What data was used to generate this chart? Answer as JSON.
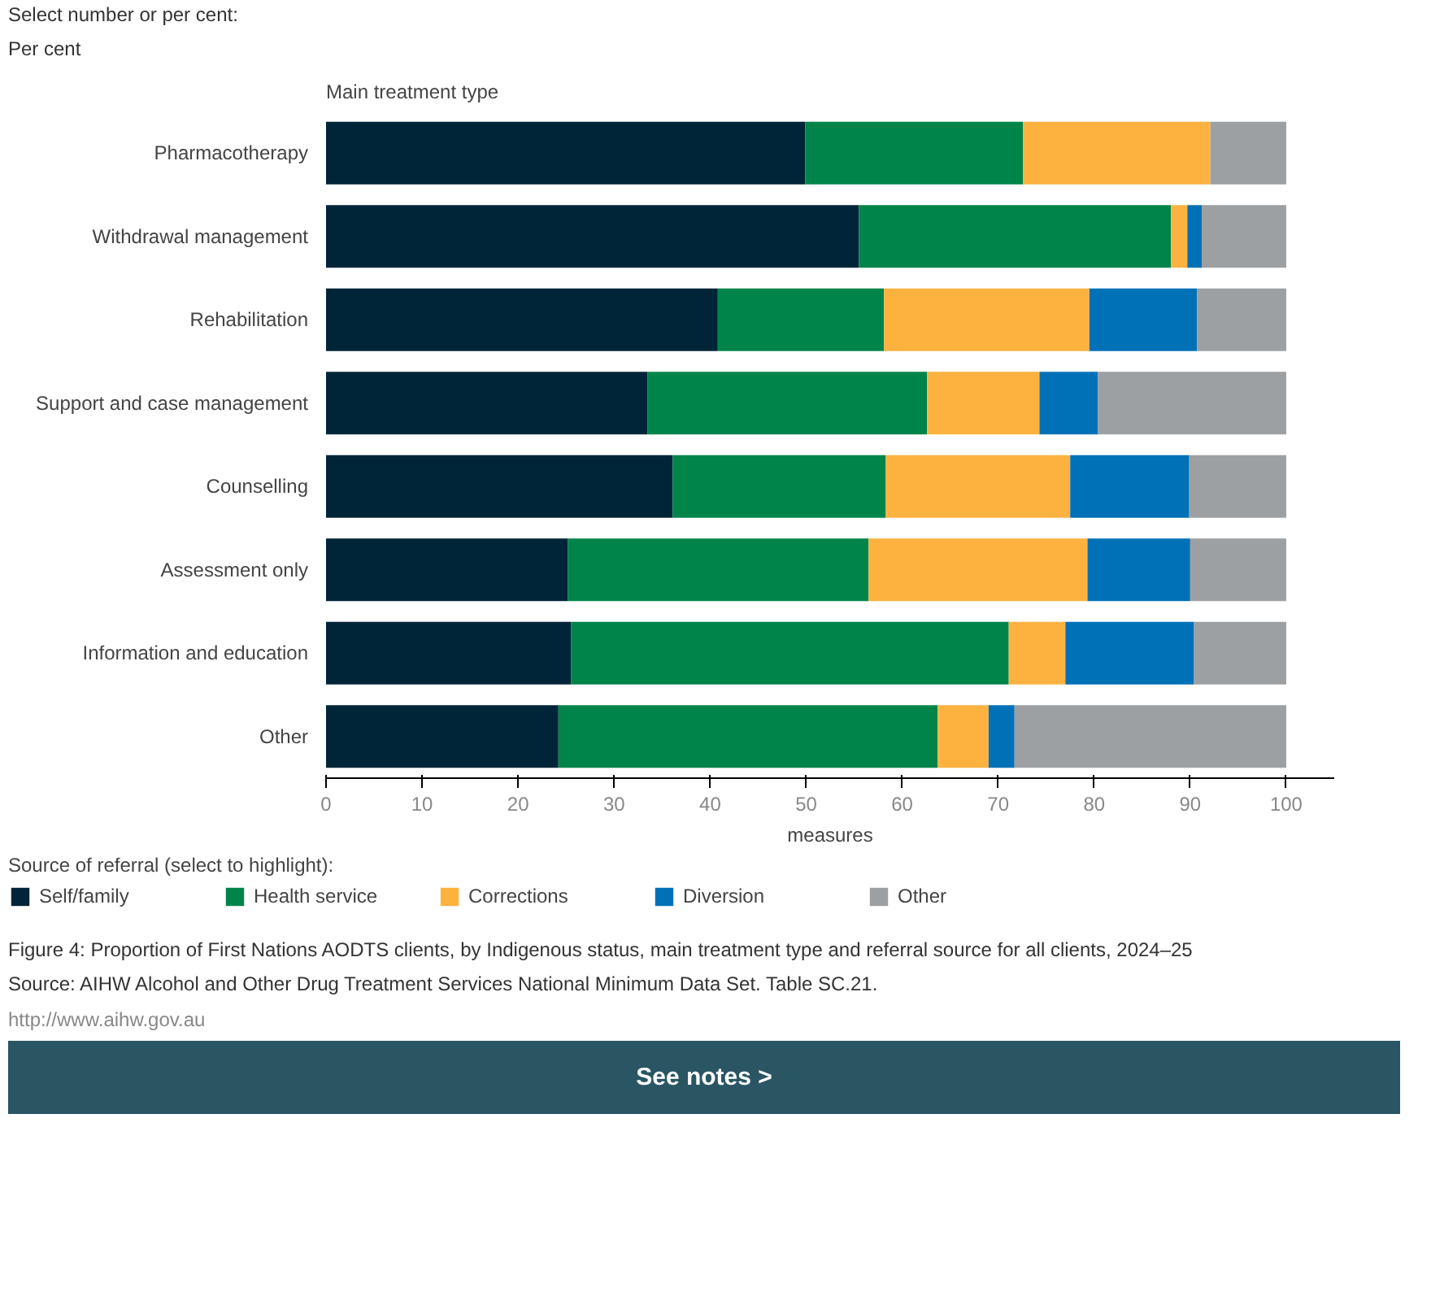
{
  "chart_data": {
    "type": "bar",
    "orientation": "horizontal",
    "stacked": true,
    "ylabel": "Main treatment type",
    "xlabel": "measures",
    "legend_title": "Source of referral (select to highlight):",
    "categories": [
      "Pharmacotherapy",
      "Withdrawal management",
      "Rehabilitation",
      "Support and case management",
      "Counselling",
      "Assessment only",
      "Information and education",
      "Other"
    ],
    "series": [
      {
        "name": "Self/family",
        "color": "#002538",
        "values": [
          49.9,
          55.5,
          40.8,
          33.5,
          36.1,
          25.2,
          25.5,
          24.2
        ]
      },
      {
        "name": "Health service",
        "color": "#00844a",
        "values": [
          22.7,
          32.5,
          17.3,
          29.1,
          22.2,
          31.3,
          45.6,
          39.5
        ]
      },
      {
        "name": "Corrections",
        "color": "#fdb240",
        "values": [
          19.5,
          1.7,
          21.4,
          11.7,
          19.2,
          22.8,
          5.9,
          5.3
        ]
      },
      {
        "name": "Diversion",
        "color": "#0071b7",
        "values": [
          0,
          1.5,
          11.2,
          6.1,
          12.4,
          10.7,
          13.4,
          2.7
        ]
      },
      {
        "name": "Other",
        "color": "#9da0a2",
        "values": [
          7.9,
          8.8,
          9.3,
          19.6,
          10.1,
          10.0,
          9.6,
          28.3
        ]
      }
    ],
    "xlim": [
      0,
      105
    ],
    "xticks": [
      0,
      10,
      20,
      30,
      40,
      50,
      60,
      70,
      80,
      90,
      100
    ],
    "grid": false,
    "legend": "bottom",
    "annotations": [
      "Select number or per cent:",
      "Per cent",
      "Figure 4: Proportion of First Nations AODTS clients, by Indigenous status, main treatment type and referral source for all clients, 2024–25",
      "Source: AIHW Alcohol and Other Drug Treatment Services National Minimum Data Set. Table SC.21.",
      "http://www.aihw.gov.au",
      "See notes >"
    ]
  }
}
